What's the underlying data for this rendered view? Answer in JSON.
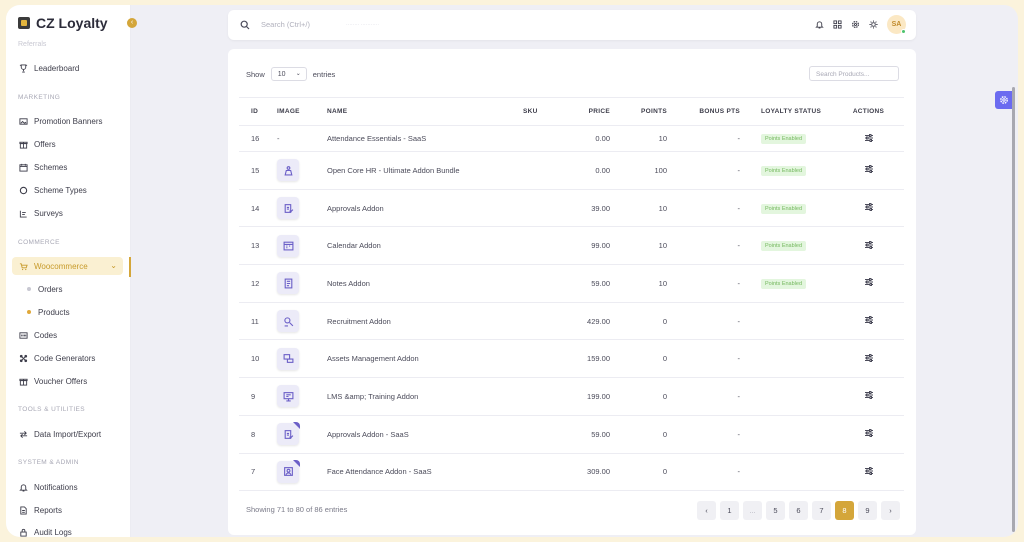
{
  "app": {
    "name": "CZ Loyalty",
    "collapse_glyph": "‹"
  },
  "sidebar": {
    "faded_item": "Referrals",
    "items": [
      {
        "label": "Leaderboard",
        "icon": "trophy-icon"
      },
      {
        "section": "MARKETING"
      },
      {
        "label": "Promotion Banners",
        "icon": "image-icon"
      },
      {
        "label": "Offers",
        "icon": "gift-icon"
      },
      {
        "label": "Schemes",
        "icon": "calendar-icon"
      },
      {
        "label": "Scheme Types",
        "icon": "circle-icon"
      },
      {
        "label": "Surveys",
        "icon": "list-icon"
      },
      {
        "section": "COMMERCE"
      },
      {
        "label": "Woocommerce",
        "icon": "cart-icon",
        "active": true
      },
      {
        "label": "Orders",
        "sub": true
      },
      {
        "label": "Products",
        "sub": true,
        "active": true
      },
      {
        "label": "Codes",
        "icon": "barcode-icon"
      },
      {
        "label": "Code Generators",
        "icon": "generator-icon"
      },
      {
        "label": "Voucher Offers",
        "icon": "gift-icon"
      },
      {
        "section": "TOOLS & UTILITIES"
      },
      {
        "label": "Data Import/Export",
        "icon": "arrows-icon"
      },
      {
        "section": "SYSTEM & ADMIN"
      },
      {
        "label": "Notifications",
        "icon": "bell-icon"
      },
      {
        "label": "Reports",
        "icon": "file-icon"
      },
      {
        "label": "Audit Logs",
        "icon": "lock-icon"
      }
    ],
    "labels": {
      "leaderboard": "Leaderboard",
      "marketing": "MARKETING",
      "promotion_banners": "Promotion Banners",
      "offers": "Offers",
      "schemes": "Schemes",
      "scheme_types": "Scheme Types",
      "surveys": "Surveys",
      "commerce": "COMMERCE",
      "woocommerce": "Woocommerce",
      "orders": "Orders",
      "products": "Products",
      "codes": "Codes",
      "code_generators": "Code Generators",
      "voucher_offers": "Voucher Offers",
      "tools": "TOOLS & UTILITIES",
      "data_import": "Data Import/Export",
      "system": "SYSTEM & ADMIN",
      "notifications": "Notifications",
      "reports": "Reports",
      "audit_logs": "Audit Logs"
    }
  },
  "topbar": {
    "search_placeholder": "Search (Ctrl+/)",
    "search_hint": "········  ···········",
    "avatar_initials": "SA"
  },
  "table_controls": {
    "show_label": "Show",
    "page_size": "10",
    "entries_label": "entries",
    "search_placeholder": "Search Products..."
  },
  "table": {
    "headers": [
      "ID",
      "IMAGE",
      "NAME",
      "SKU",
      "PRICE",
      "POINTS",
      "BONUS PTS",
      "LOYALTY STATUS",
      "ACTIONS"
    ],
    "rows": [
      {
        "id": "16",
        "image": "-",
        "name": "Attendance Essentials - SaaS",
        "sku": "",
        "price": "0.00",
        "points": "10",
        "bonus": "-",
        "status": "Points Enabled",
        "thumb": ""
      },
      {
        "id": "15",
        "image": "",
        "name": "Open Core HR - Ultimate Addon Bundle",
        "sku": "",
        "price": "0.00",
        "points": "100",
        "bonus": "-",
        "status": "Points Enabled",
        "thumb": "bundle-icon"
      },
      {
        "id": "14",
        "image": "",
        "name": "Approvals Addon",
        "sku": "",
        "price": "39.00",
        "points": "10",
        "bonus": "-",
        "status": "Points Enabled",
        "thumb": "approval-icon"
      },
      {
        "id": "13",
        "image": "",
        "name": "Calendar Addon",
        "sku": "",
        "price": "99.00",
        "points": "10",
        "bonus": "-",
        "status": "Points Enabled",
        "thumb": "calendar-icon"
      },
      {
        "id": "12",
        "image": "",
        "name": "Notes Addon",
        "sku": "",
        "price": "59.00",
        "points": "10",
        "bonus": "-",
        "status": "Points Enabled",
        "thumb": "notes-icon"
      },
      {
        "id": "11",
        "image": "",
        "name": "Recruitment Addon",
        "sku": "",
        "price": "429.00",
        "points": "0",
        "bonus": "-",
        "status": "",
        "thumb": "recruit-icon"
      },
      {
        "id": "10",
        "image": "",
        "name": "Assets Management Addon",
        "sku": "",
        "price": "159.00",
        "points": "0",
        "bonus": "-",
        "status": "",
        "thumb": "assets-icon"
      },
      {
        "id": "9",
        "image": "",
        "name": "LMS &amp; Training Addon",
        "sku": "",
        "price": "199.00",
        "points": "0",
        "bonus": "-",
        "status": "",
        "thumb": "lms-icon"
      },
      {
        "id": "8",
        "image": "",
        "name": "Approvals Addon - SaaS",
        "sku": "",
        "price": "59.00",
        "points": "0",
        "bonus": "-",
        "status": "",
        "thumb": "approval-icon",
        "corner": true
      },
      {
        "id": "7",
        "image": "",
        "name": "Face Attendance Addon - SaaS",
        "sku": "",
        "price": "309.00",
        "points": "0",
        "bonus": "-",
        "status": "",
        "thumb": "face-icon",
        "corner": true
      }
    ]
  },
  "footer": {
    "showing": "Showing 71 to 80 of 86 entries",
    "pages": [
      "‹",
      "1",
      "...",
      "5",
      "6",
      "7",
      "8",
      "9",
      "›"
    ],
    "active_page": "8"
  },
  "colors": {
    "accent": "#d4a63a",
    "badge_bg": "#e3f6de",
    "badge_text": "#74b85e",
    "thumb_icon": "#6b5fc7",
    "float_button": "#6b6bf0"
  }
}
